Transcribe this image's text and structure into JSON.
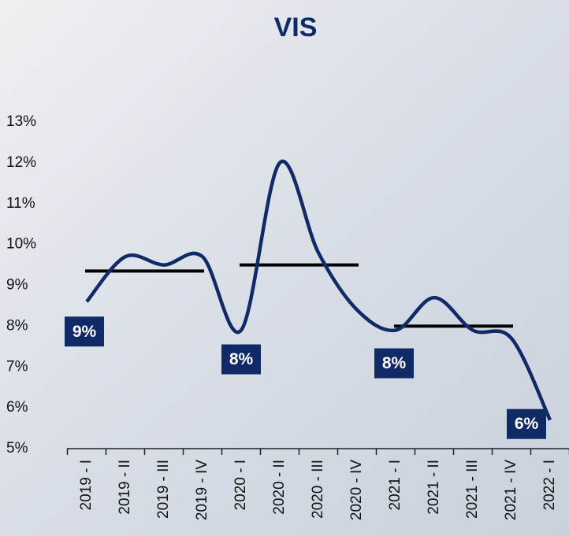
{
  "chart_data": {
    "type": "line",
    "title": "VIS",
    "categories": [
      "2019 - I",
      "2019 - II",
      "2019 - III",
      "2019 - IV",
      "2020 - I",
      "2020 - II",
      "2020 - III",
      "2020 - IV",
      "2021 - I",
      "2021 - II",
      "2021 - III",
      "2021 - IV",
      "2022 - I"
    ],
    "series": [
      {
        "color": "#0f2a66",
        "values": [
          8.6,
          9.7,
          9.5,
          9.7,
          7.9,
          12.0,
          9.8,
          8.4,
          7.9,
          8.7,
          7.9,
          7.7,
          5.7
        ]
      }
    ],
    "averages": [
      {
        "from": "2019 - I",
        "to": "2019 - IV",
        "value": 9.35,
        "color": "#000000"
      },
      {
        "from": "2020 - I",
        "to": "2020 - IV",
        "value": 9.5,
        "color": "#000000"
      },
      {
        "from": "2021 - I",
        "to": "2021 - IV",
        "value": 8.0,
        "color": "#000000"
      }
    ],
    "annotations": [
      {
        "category": "2019 - I",
        "value": 9,
        "label": "9%"
      },
      {
        "category": "2020 - I",
        "value": 8,
        "label": "8%"
      },
      {
        "category": "2021 - I",
        "value": 8,
        "label": "8%"
      },
      {
        "category": "2022 - I",
        "value": 6,
        "label": "6%"
      }
    ],
    "ylim": [
      5,
      13
    ],
    "yticks": [
      {
        "value": 5,
        "label": "5%"
      },
      {
        "value": 6,
        "label": "6%"
      },
      {
        "value": 7,
        "label": "7%"
      },
      {
        "value": 8,
        "label": "8%"
      },
      {
        "value": 9,
        "label": "9%"
      },
      {
        "value": 10,
        "label": "10%"
      },
      {
        "value": 11,
        "label": "11%"
      },
      {
        "value": 12,
        "label": "12%"
      },
      {
        "value": 13,
        "label": "13%"
      }
    ]
  }
}
